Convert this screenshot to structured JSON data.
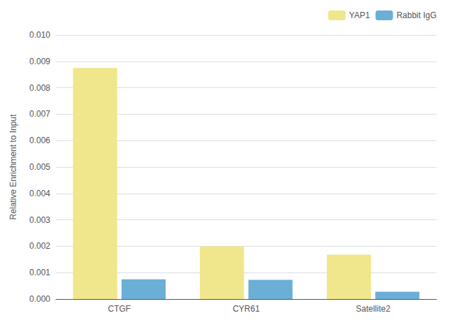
{
  "chart_data": {
    "type": "bar",
    "categories": [
      "CTGF",
      "CYR61",
      "Satellite2"
    ],
    "series": [
      {
        "name": "YAP1",
        "color": "#F0E68C",
        "values": [
          0.00875,
          0.002,
          0.00168
        ]
      },
      {
        "name": "Rabbit IgG",
        "color": "#6BAED6",
        "values": [
          0.00075,
          0.00073,
          0.00028
        ]
      }
    ],
    "ylabel": "Relative Enrichment to Input",
    "ylim": [
      0,
      0.01
    ],
    "yticks": [
      {
        "value": 0,
        "label": "0.000"
      },
      0.001,
      0.002,
      0.003,
      0.004,
      0.005,
      0.006,
      0.007,
      0.008,
      0.009,
      {
        "value": 0.01,
        "label": "0.010"
      }
    ],
    "grid": true,
    "legend": "upper right"
  }
}
